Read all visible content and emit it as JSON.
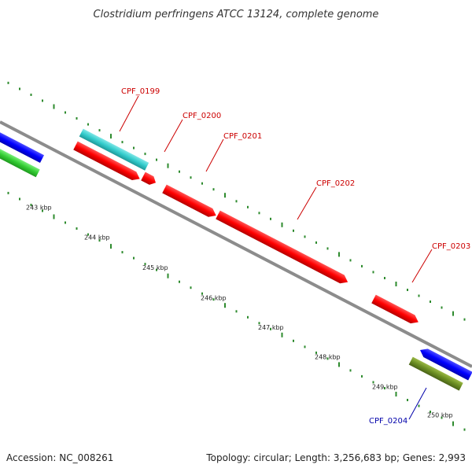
{
  "title": "Clostridium perfringens ATCC 13124, complete genome",
  "footer": {
    "accession": "Accession: NC_008261",
    "topology": "Topology: circular; Length: 3,256,683 bp; Genes: 2,993"
  },
  "colors": {
    "backbone": "#8c8c8c",
    "tick": "#2e8b2e",
    "cds_forward": "#ff0000",
    "trna": "#33cccc",
    "cds_reverse": "#0000ff",
    "rrna": "#33cc33",
    "other": "#6b8e23",
    "label_forward": "#cc0000",
    "label_reverse": "#0000aa"
  },
  "ticks": [
    {
      "label": "243 kbp"
    },
    {
      "label": "244 kbp"
    },
    {
      "label": "245 kbp"
    },
    {
      "label": "246 kbp"
    },
    {
      "label": "247 kbp"
    },
    {
      "label": "248 kbp"
    },
    {
      "label": "249 kbp"
    },
    {
      "label": "250 kbp"
    }
  ],
  "genes": [
    {
      "name": "CPF_0199",
      "strand": "forward"
    },
    {
      "name": "CPF_0200",
      "strand": "forward"
    },
    {
      "name": "CPF_0201",
      "strand": "forward"
    },
    {
      "name": "CPF_0202",
      "strand": "forward"
    },
    {
      "name": "CPF_0203",
      "strand": "forward"
    },
    {
      "name": "CPF_0204",
      "strand": "reverse"
    }
  ]
}
